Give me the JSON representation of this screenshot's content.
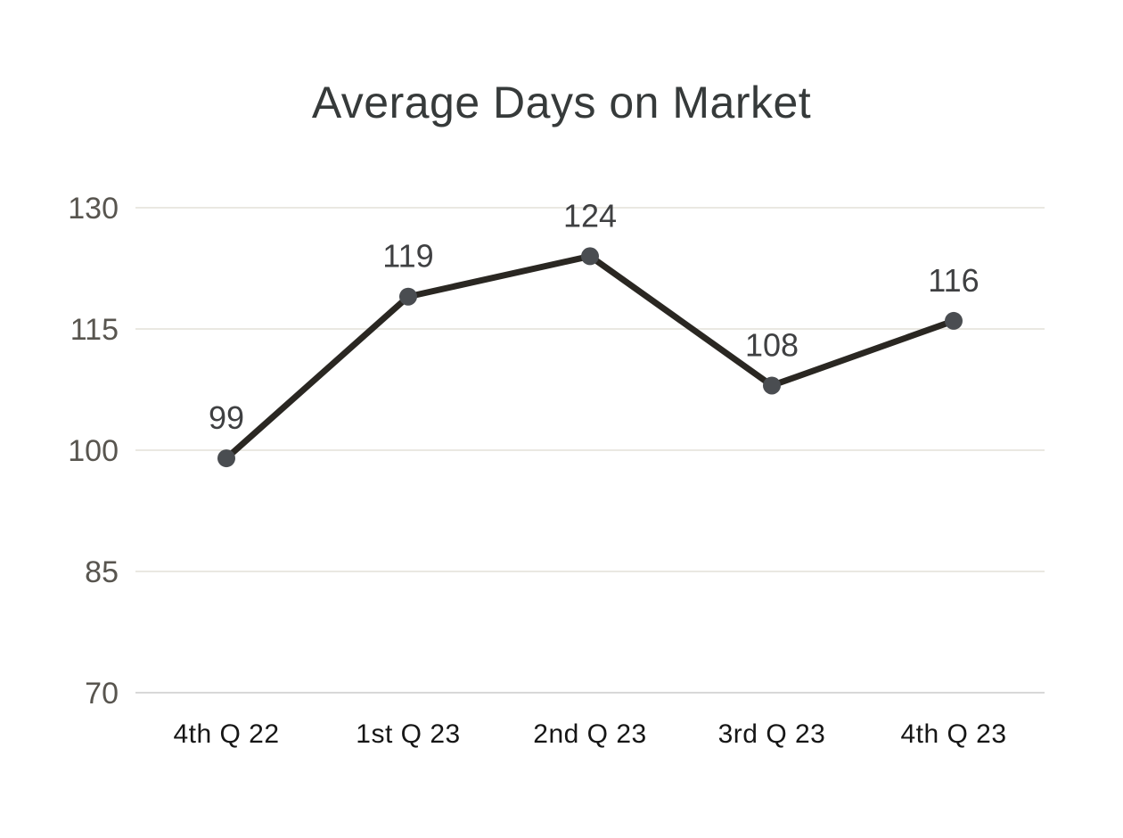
{
  "page": {
    "background": "#ffffff"
  },
  "chart_data": {
    "type": "line",
    "title": "Average Days on Market",
    "categories": [
      "4th Q 22",
      "1st Q 23",
      "2nd Q 23",
      "3rd Q 23",
      "4th Q 23"
    ],
    "series": [
      {
        "name": "Average Days on Market",
        "values": [
          99,
          119,
          124,
          108,
          116
        ]
      }
    ],
    "data_labels": [
      "99",
      "119",
      "124",
      "108",
      "116"
    ],
    "yticks": [
      70,
      85,
      100,
      115,
      130
    ],
    "ytick_labels": [
      "70",
      "85",
      "100",
      "115",
      "130"
    ],
    "ylim": [
      70,
      130
    ],
    "xlabel": "",
    "ylabel": "",
    "grid": true,
    "legend_position": "none",
    "colors": {
      "line": "#2a2722",
      "marker": "#4a4d51",
      "gridline": "#eae8e2",
      "axis_line": "#d8d8d8",
      "title": "#363a3a",
      "ytick_label": "#58554f",
      "xtick_label": "#161616",
      "data_label": "#3f4042",
      "background": "#ffffff"
    }
  }
}
